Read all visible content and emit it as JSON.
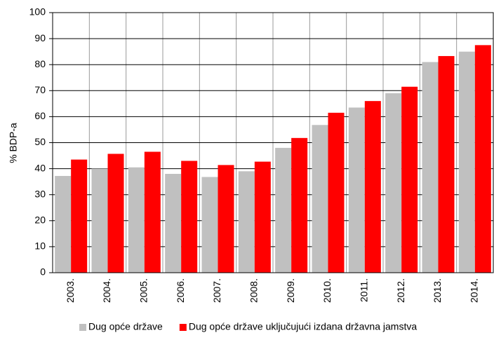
{
  "chart_data": {
    "type": "bar",
    "ylabel": "% BDP-a",
    "categories": [
      "2003.",
      "2004.",
      "2005.",
      "2006.",
      "2007.",
      "2008.",
      "2009.",
      "2010.",
      "2011.",
      "2012.",
      "2013.",
      "2014."
    ],
    "series": [
      {
        "name": "Dug opće države",
        "color": "#c0c0c0",
        "values": [
          37.2,
          40,
          40.5,
          38,
          36.8,
          39,
          48,
          56.8,
          63.5,
          69,
          81,
          85
        ]
      },
      {
        "name": "Dug opće države uključujući izdana državna jamstva",
        "color": "#ff0000",
        "values": [
          43.5,
          45.7,
          46.5,
          43,
          41.4,
          42.7,
          51.8,
          61.5,
          66,
          71.5,
          83.3,
          87.5
        ]
      }
    ],
    "ylim": [
      0,
      100
    ],
    "yticks": [
      0,
      10,
      20,
      30,
      40,
      50,
      60,
      70,
      80,
      90,
      100
    ],
    "grid": true,
    "legend": "bottom"
  }
}
